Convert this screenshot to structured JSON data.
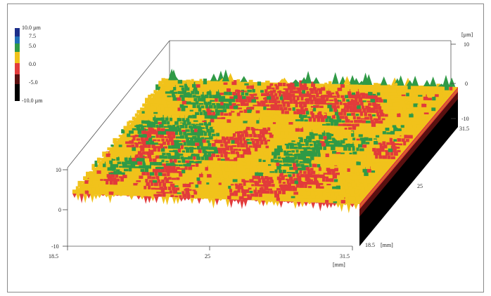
{
  "chart_data": {
    "type": "surface3d",
    "title": "",
    "colorbar": {
      "labels": [
        "10.0 µm",
        "7.5",
        "5.0",
        "0.0",
        "-5.0",
        "-10.0 µm"
      ],
      "colors": [
        "#1c2f8a",
        "#1f6fb6",
        "#2f9a46",
        "#f1c21b",
        "#e23b3b",
        "#5a1010",
        "#000000"
      ]
    },
    "z_axis_right": {
      "unit": "[µm]",
      "ticks": [
        "10",
        "0",
        "-10"
      ]
    },
    "z_axis_left": {
      "ticks": [
        "10",
        "0",
        "-10"
      ]
    },
    "x_axis": {
      "ticks": [
        "18.5",
        "25",
        "31.5"
      ],
      "unit": "[mm]",
      "range": [
        18.5,
        31.5
      ]
    },
    "y_axis": {
      "ticks": [
        "31.5",
        "25",
        "18.5"
      ],
      "unit": "[mm]",
      "range": [
        18.5,
        31.5
      ]
    },
    "z_range": [
      -10,
      10
    ],
    "surface_colors": {
      "dominant": "#f1c21b",
      "secondary": "#e23b3b",
      "tertiary": "#2f9a46"
    }
  }
}
